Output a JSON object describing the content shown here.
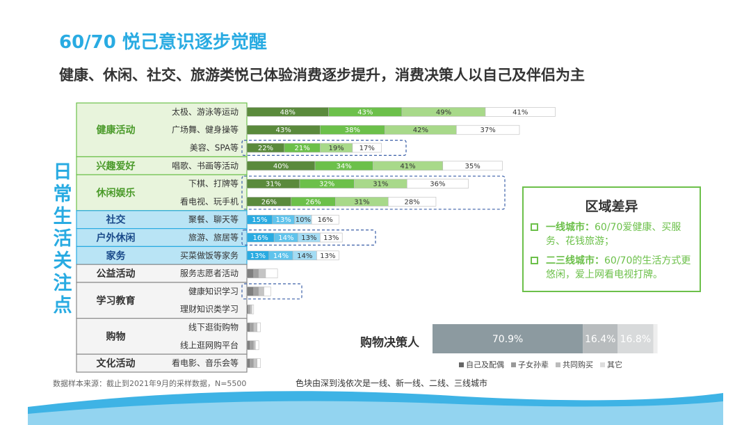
{
  "title": "60/70 悦己意识逐步觉醒",
  "subtitle": "健康、休闲、社交、旅游类悦己体验消费逐步提升，消费决策人以自己及伴侣为主",
  "side_label": [
    "日",
    "常",
    "生",
    "活",
    "关",
    "注",
    "点"
  ],
  "colors": {
    "green": [
      "#5a8a3c",
      "#6cc04a",
      "#a8d98a",
      "#ffffff"
    ],
    "blue": [
      "#29abe2",
      "#5fc3ec",
      "#a3dcf4",
      "#ffffff"
    ],
    "gray": [
      "#7f7f7f",
      "#a0a0a0",
      "#c4c4c4",
      "#ffffff"
    ]
  },
  "chart_data": [
    {
      "type": "bar",
      "stacked": true,
      "orientation": "horizontal",
      "groups": [
        {
          "name": "健康活动",
          "theme": "green",
          "rows": [
            {
              "label": "太极、游泳等运动",
              "values": [
                48,
                43,
                49,
                41
              ]
            },
            {
              "label": "广场舞、健身操等",
              "values": [
                43,
                38,
                42,
                37
              ]
            },
            {
              "label": "美容、SPA等",
              "values": [
                22,
                21,
                19,
                17
              ]
            }
          ]
        },
        {
          "name": "兴趣爱好",
          "theme": "green",
          "rows": [
            {
              "label": "唱歌、书画等活动",
              "values": [
                40,
                34,
                41,
                35
              ]
            }
          ]
        },
        {
          "name": "休闲娱乐",
          "theme": "green",
          "rows": [
            {
              "label": "下棋、打牌等",
              "values": [
                31,
                32,
                31,
                36
              ]
            },
            {
              "label": "看电视、玩手机",
              "values": [
                26,
                26,
                31,
                28
              ]
            }
          ]
        },
        {
          "name": "社交",
          "theme": "blue",
          "rows": [
            {
              "label": "聚餐、聊天等",
              "values": [
                15,
                13,
                10,
                16
              ]
            }
          ]
        },
        {
          "name": "户外休闲",
          "theme": "blue",
          "rows": [
            {
              "label": "旅游、旅居等",
              "values": [
                16,
                14,
                13,
                13
              ]
            }
          ]
        },
        {
          "name": "家务",
          "theme": "blue",
          "rows": [
            {
              "label": "买菜做饭等家务",
              "values": [
                13,
                14,
                14,
                13
              ]
            }
          ]
        },
        {
          "name": "公益活动",
          "theme": "gray",
          "rows": [
            {
              "label": "服务志愿者活动",
              "values": [
                4,
                3,
                4,
                7
              ]
            }
          ]
        },
        {
          "name": "学习教育",
          "theme": "gray",
          "rows": [
            {
              "label": "健康知识学习",
              "values": [
                4,
                3,
                3,
                4
              ]
            },
            {
              "label": "理财知识类学习",
              "values": [
                1,
                1,
                1,
                1
              ]
            }
          ]
        },
        {
          "name": "购物",
          "theme": "gray",
          "rows": [
            {
              "label": "线下逛街购物",
              "values": [
                2,
                2,
                2,
                2
              ]
            },
            {
              "label": "线上逛网购平台",
              "values": [
                2,
                2,
                1,
                2
              ]
            }
          ]
        },
        {
          "name": "文化活动",
          "theme": "gray",
          "rows": [
            {
              "label": "看电影、音乐会等",
              "values": [
                2,
                2,
                2,
                2
              ]
            }
          ]
        }
      ]
    },
    {
      "type": "bar",
      "stacked": true,
      "orientation": "horizontal",
      "title": "购物决策人",
      "segments": [
        {
          "name": "自己及配偶",
          "value": 70.9,
          "label": "70.9%",
          "color": "#8c9aa0"
        },
        {
          "name": "子女孙辈",
          "value": 16.4,
          "label": "16.4%",
          "color": "#b8bcbe"
        },
        {
          "name": "共同购买",
          "value": 16.8,
          "label": "16.8%",
          "color": "#d8dadb"
        },
        {
          "name": "其它",
          "value": 2,
          "label": "",
          "color": "#eeeeee"
        }
      ]
    }
  ],
  "region": {
    "title": "区域差异",
    "items": [
      {
        "bold": "一线城市：",
        "text": "60/70爱健康、买服务、花钱旅游；"
      },
      {
        "bold": "二三线城市：",
        "text": "60/70的生活方式更悠闲，爱上网看电视打牌。"
      }
    ]
  },
  "source": "数据样本来源：截止到2021年9月的采样数据，N=5500",
  "color_note": "色块由深到浅依次是一线、新一线、二线、三线城市"
}
